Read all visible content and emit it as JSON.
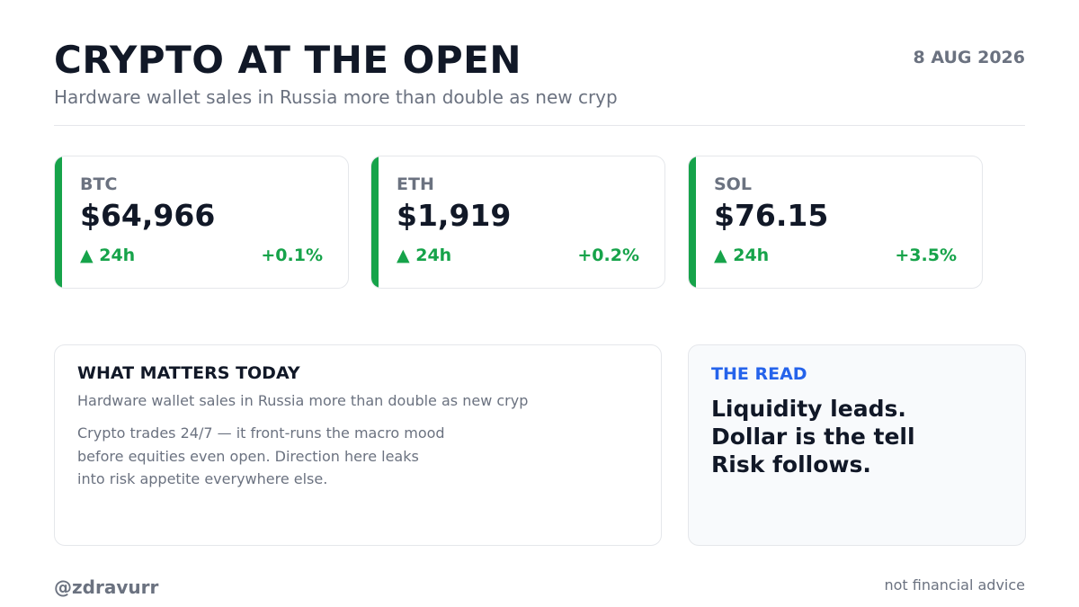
{
  "header": {
    "title": "CRYPTO AT THE OPEN",
    "subtitle": "Hardware wallet sales in Russia more than double as new cryp",
    "date": "8 AUG 2026"
  },
  "cards": [
    {
      "symbol": "BTC",
      "price": "$64,966",
      "period": "▲ 24h",
      "change": "+0.1%"
    },
    {
      "symbol": "ETH",
      "price": "$1,919",
      "period": "▲ 24h",
      "change": "+0.2%"
    },
    {
      "symbol": "SOL",
      "price": "$76.15",
      "period": "▲ 24h",
      "change": "+3.5%"
    }
  ],
  "matters": {
    "title": "WHAT MATTERS TODAY",
    "subtitle": "Hardware wallet sales in Russia more than double as new cryp",
    "lines": [
      "Crypto trades 24/7 — it front-runs the macro mood",
      "before equities even open. Direction here leaks",
      "into risk appetite everywhere else."
    ]
  },
  "read": {
    "title": "THE READ",
    "lines": [
      "Liquidity leads.",
      "Dollar is the tell",
      "Risk follows."
    ]
  },
  "footer": {
    "handle": "@zdravurr",
    "disclaimer": "not financial advice"
  }
}
